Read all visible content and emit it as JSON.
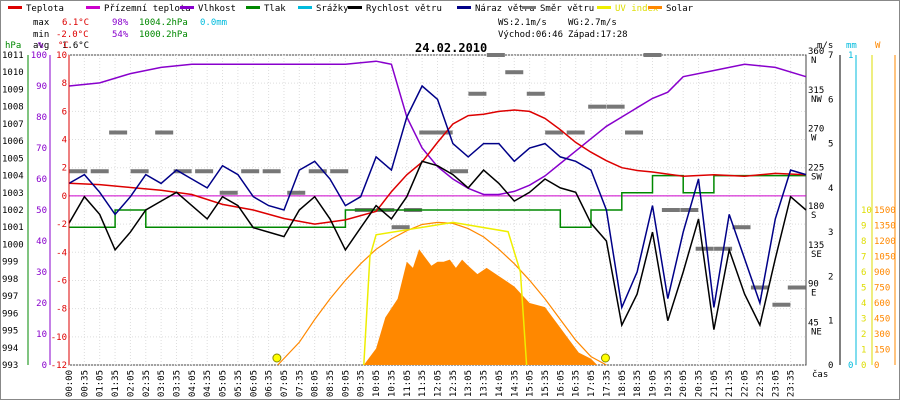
{
  "chart_data": {
    "type": "line",
    "title": "24.02.2010",
    "legend": [
      {
        "name": "Teplota",
        "color": "#dd0000"
      },
      {
        "name": "Přízemní teplota",
        "color": "#cc00cc"
      },
      {
        "name": "Vlhkost",
        "color": "#8800cc"
      },
      {
        "name": "Tlak",
        "color": "#008800"
      },
      {
        "name": "Srážky",
        "color": "#00bbdd"
      },
      {
        "name": "Rychlost větru",
        "color": "#000000"
      },
      {
        "name": "Náraz větru",
        "color": "#000088"
      },
      {
        "name": "Směr větru",
        "color": "#777777"
      },
      {
        "name": "UV index",
        "color": "#eeee00"
      },
      {
        "name": "Solar",
        "color": "#ff8800"
      }
    ],
    "stats": {
      "max_label": "max",
      "max_temp": "6.1°C",
      "max_hum": "98%",
      "max_press": "1004.2hPa",
      "max_rain": "0.0mm",
      "min_label": "min",
      "min_temp": "-2.0°C",
      "min_hum": "54%",
      "min_press": "1000.2hPa",
      "avg_label": "avg",
      "avg_temp": "1.6°C"
    },
    "info": {
      "ws": "WS:2.1m/s",
      "wg": "WG:2.7m/s",
      "sunrise": "Východ:06:46",
      "sunset": "Západ:17:28"
    },
    "axis_units": {
      "pressure": "hPa",
      "humidity": "%",
      "temperature": "°C",
      "wind": "m/s",
      "rain": "mm",
      "solar": "W"
    },
    "x_label": "čas",
    "xticks": [
      "00:00",
      "00:35",
      "01:05",
      "01:35",
      "02:05",
      "02:35",
      "03:05",
      "03:35",
      "04:05",
      "04:35",
      "05:05",
      "05:35",
      "06:05",
      "06:35",
      "07:05",
      "07:35",
      "08:05",
      "08:35",
      "09:05",
      "09:35",
      "10:05",
      "10:35",
      "11:05",
      "11:35",
      "12:05",
      "12:35",
      "13:05",
      "13:35",
      "14:05",
      "14:35",
      "15:05",
      "15:35",
      "16:05",
      "16:35",
      "17:05",
      "17:35",
      "18:05",
      "18:35",
      "19:05",
      "19:35",
      "20:05",
      "20:35",
      "21:05",
      "21:35",
      "22:05",
      "22:35",
      "23:05",
      "23:35"
    ],
    "pressure_ticks": [
      "1011",
      "1010",
      "1009",
      "1008",
      "1007",
      "1006",
      "1005",
      "1004",
      "1003",
      "1002",
      "1001",
      "1000",
      "999",
      "998",
      "997",
      "996",
      "995",
      "994",
      "993"
    ],
    "humidity_ticks": [
      "100",
      "90",
      "80",
      "70",
      "60",
      "50",
      "40",
      "30",
      "20",
      "10",
      "0"
    ],
    "temperature_ticks": [
      "10",
      "8",
      "6",
      "4",
      "2",
      "0",
      "-2",
      "-4",
      "-6",
      "-8",
      "-10",
      "-12"
    ],
    "direction_ticks": [
      {
        "deg": "360",
        "dir": "N"
      },
      {
        "deg": "315",
        "dir": "NW"
      },
      {
        "deg": "270",
        "dir": "W"
      },
      {
        "deg": "225",
        "dir": "SW"
      },
      {
        "deg": "180",
        "dir": "S"
      },
      {
        "deg": "135",
        "dir": "SE"
      },
      {
        "deg": "90",
        "dir": "E"
      },
      {
        "deg": "45",
        "dir": "NE"
      }
    ],
    "wind_ticks": [
      "7",
      "6",
      "5",
      "4",
      "3",
      "2",
      "1",
      "0"
    ],
    "rain_ticks": [
      "1",
      "0"
    ],
    "uv_ticks": [
      "10",
      "9",
      "8",
      "7",
      "6",
      "5",
      "4",
      "3",
      "2",
      "1",
      "0"
    ],
    "solar_ticks": [
      "1500",
      "1350",
      "1200",
      "1050",
      "900",
      "750",
      "600",
      "450",
      "300",
      "150",
      "0"
    ],
    "ranges": {
      "pressure": [
        993,
        1011
      ],
      "humidity": [
        0,
        100
      ],
      "temperature": [
        -12,
        10
      ],
      "direction": [
        0,
        360
      ],
      "wind": [
        0,
        7
      ],
      "solar": [
        0,
        1500
      ],
      "hours": [
        0,
        24
      ]
    },
    "series": {
      "temperature": {
        "t": [
          0,
          1,
          2,
          3,
          4,
          5,
          6,
          7,
          8,
          9,
          10,
          10.5,
          11,
          11.5,
          12,
          12.5,
          13,
          13.5,
          14,
          14.5,
          15,
          15.5,
          16,
          16.5,
          17,
          17.5,
          18,
          18.5,
          19,
          20,
          21,
          22,
          23,
          24
        ],
        "v": [
          0.9,
          0.8,
          0.6,
          0.4,
          0.1,
          -0.6,
          -1.0,
          -1.6,
          -2.0,
          -1.7,
          -1.1,
          0.3,
          1.5,
          2.4,
          3.8,
          5.1,
          5.7,
          5.8,
          6.0,
          6.1,
          6.0,
          5.5,
          4.7,
          3.8,
          3.1,
          2.5,
          2.0,
          1.8,
          1.7,
          1.4,
          1.5,
          1.4,
          1.6,
          1.5
        ]
      },
      "ground_temperature": {
        "t": [
          0,
          24
        ],
        "v": [
          0,
          0
        ]
      },
      "humidity": {
        "t": [
          0,
          1,
          2,
          3,
          4,
          5,
          6,
          7,
          8,
          9,
          10,
          10.5,
          11,
          11.5,
          12,
          12.5,
          13,
          13.5,
          14,
          14.5,
          15,
          15.5,
          16,
          16.5,
          17,
          17.5,
          18,
          18.5,
          19,
          19.5,
          20,
          21,
          22,
          23,
          24
        ],
        "v": [
          90,
          91,
          94,
          96,
          97,
          97,
          97,
          97,
          97,
          97,
          98,
          97,
          80,
          70,
          64,
          60,
          57,
          55,
          55,
          56,
          58,
          61,
          65,
          69,
          73,
          77,
          80,
          83,
          86,
          88,
          93,
          95,
          97,
          96,
          93
        ]
      },
      "pressure": {
        "t": [
          0,
          1,
          1.5,
          2,
          2.5,
          3,
          4,
          5,
          6,
          7,
          8,
          9,
          10,
          11,
          12,
          13,
          14,
          15,
          16,
          16.5,
          17,
          17.5,
          18,
          18.5,
          19,
          19.5,
          20,
          21,
          22,
          23,
          24
        ],
        "v": [
          1001,
          1001,
          1002,
          1002,
          1001,
          1001,
          1001,
          1001,
          1001,
          1001,
          1001,
          1002,
          1002,
          1002,
          1002,
          1002,
          1002,
          1002,
          1001,
          1001,
          1002,
          1002,
          1003,
          1003,
          1004,
          1004,
          1003,
          1004,
          1004,
          1004,
          1004
        ]
      },
      "wind_speed": {
        "t": [
          0,
          0.5,
          1,
          1.5,
          2,
          2.5,
          3,
          3.5,
          4,
          4.5,
          5,
          5.5,
          6,
          6.5,
          7,
          7.5,
          8,
          8.5,
          9,
          9.5,
          10,
          10.5,
          11,
          11.5,
          12,
          12.5,
          13,
          13.5,
          14,
          14.5,
          15,
          15.5,
          16,
          16.5,
          17,
          17.5,
          18,
          18.5,
          19,
          19.5,
          20,
          20.5,
          21,
          21.5,
          22,
          22.5,
          23,
          23.5,
          24
        ],
        "v": [
          3.2,
          3.8,
          3.4,
          2.6,
          3.0,
          3.5,
          3.7,
          3.9,
          3.6,
          3.3,
          3.8,
          3.6,
          3.1,
          3.0,
          2.9,
          3.5,
          3.8,
          3.3,
          2.6,
          3.1,
          3.6,
          3.3,
          3.8,
          4.6,
          4.5,
          4.3,
          4.0,
          4.4,
          4.1,
          3.7,
          3.9,
          4.2,
          4.0,
          3.9,
          3.2,
          2.8,
          0.9,
          1.6,
          3.0,
          1.0,
          2.1,
          3.3,
          0.8,
          2.6,
          1.6,
          0.9,
          2.4,
          3.8,
          3.5
        ]
      },
      "wind_gust": {
        "t": [
          0,
          0.5,
          1,
          1.5,
          2,
          2.5,
          3,
          3.5,
          4,
          4.5,
          5,
          5.5,
          6,
          6.5,
          7,
          7.5,
          8,
          8.5,
          9,
          9.5,
          10,
          10.5,
          11,
          11.5,
          12,
          12.5,
          13,
          13.5,
          14,
          14.5,
          15,
          15.5,
          16,
          16.5,
          17,
          17.5,
          18,
          18.5,
          19,
          19.5,
          20,
          20.5,
          21,
          21.5,
          22,
          22.5,
          23,
          23.5,
          24
        ],
        "v": [
          4.1,
          4.3,
          3.9,
          3.4,
          3.8,
          4.3,
          4.1,
          4.4,
          4.2,
          4.0,
          4.5,
          4.3,
          3.8,
          3.6,
          3.5,
          4.4,
          4.6,
          4.2,
          3.6,
          3.8,
          4.7,
          4.4,
          5.6,
          6.3,
          6.0,
          5.0,
          4.7,
          5.0,
          5.0,
          4.6,
          4.9,
          5.0,
          4.7,
          4.6,
          4.4,
          3.5,
          1.3,
          2.1,
          3.6,
          1.5,
          3.0,
          4.2,
          1.3,
          3.4,
          2.4,
          1.4,
          3.3,
          4.4,
          4.3
        ]
      },
      "wind_direction": {
        "t": [
          0.3,
          1.0,
          1.6,
          2.3,
          3.1,
          3.7,
          4.4,
          5.2,
          5.9,
          6.6,
          7.4,
          8.1,
          8.8,
          9.6,
          10.3,
          10.8,
          11.2,
          11.7,
          12.2,
          12.7,
          13.3,
          13.9,
          14.5,
          15.2,
          15.8,
          16.5,
          17.2,
          17.8,
          18.4,
          19.0,
          19.6,
          20.2,
          20.7,
          21.3,
          21.9,
          22.5,
          23.2,
          23.7
        ],
        "v": [
          225,
          225,
          270,
          225,
          270,
          225,
          225,
          200,
          225,
          225,
          200,
          225,
          225,
          180,
          180,
          160,
          180,
          270,
          270,
          225,
          315,
          360,
          340,
          315,
          270,
          270,
          300,
          300,
          270,
          360,
          180,
          180,
          135,
          135,
          160,
          90,
          70,
          90
        ]
      },
      "solar": {
        "t": [
          9.6,
          10,
          10.3,
          10.7,
          11,
          11.2,
          11.4,
          11.6,
          11.8,
          12,
          12.2,
          12.4,
          12.6,
          12.8,
          13,
          13.3,
          13.6,
          14,
          14.5,
          15,
          15.5,
          16,
          16.3,
          16.6,
          17.0,
          17.2
        ],
        "v": [
          0,
          80,
          230,
          320,
          500,
          470,
          560,
          520,
          480,
          500,
          500,
          510,
          470,
          510,
          480,
          440,
          470,
          430,
          380,
          300,
          280,
          180,
          120,
          60,
          30,
          0
        ]
      },
      "solar_theory": {
        "t": [
          6.8,
          7.5,
          8,
          8.5,
          9,
          9.5,
          10,
          10.5,
          11,
          11.5,
          12,
          12.5,
          13,
          13.5,
          14,
          14.5,
          15,
          15.5,
          16,
          16.5,
          17,
          17.5
        ],
        "v": [
          0,
          110,
          220,
          320,
          410,
          490,
          560,
          610,
          650,
          680,
          690,
          685,
          660,
          620,
          560,
          490,
          410,
          320,
          220,
          120,
          40,
          0
        ]
      },
      "uv": {
        "t": [
          9.6,
          9.8,
          10.0,
          12.5,
          14.3,
          14.7,
          14.9
        ],
        "v": [
          0,
          3.5,
          4.2,
          4.6,
          4.3,
          3,
          0
        ]
      }
    }
  }
}
